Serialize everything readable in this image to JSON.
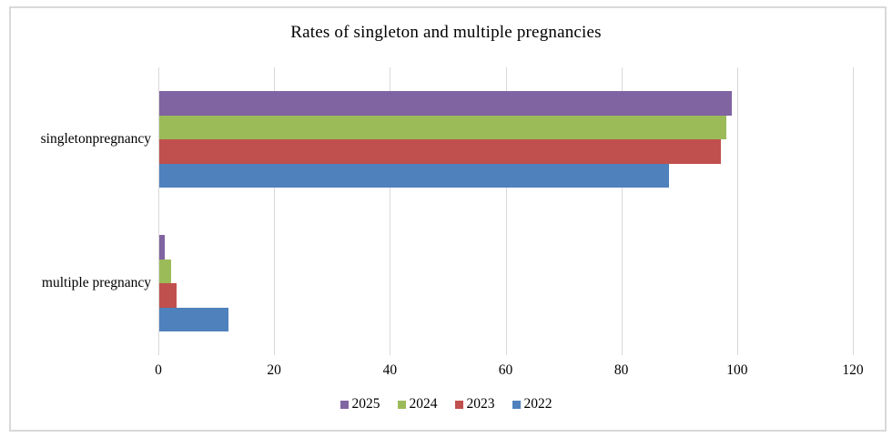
{
  "chart_data": {
    "type": "bar",
    "orientation": "horizontal",
    "title": "Rates of singleton and multiple pregnancies",
    "categories": [
      "singletonpregnancy",
      "multiple pregnancy"
    ],
    "series": [
      {
        "name": "2025",
        "color": "#8064A2",
        "values": [
          99,
          1
        ]
      },
      {
        "name": "2024",
        "color": "#9BBB59",
        "values": [
          98,
          2
        ]
      },
      {
        "name": "2023",
        "color": "#C0504D",
        "values": [
          97,
          3
        ]
      },
      {
        "name": "2022",
        "color": "#4F81BD",
        "values": [
          88,
          12
        ]
      }
    ],
    "xlabel": "",
    "ylabel": "",
    "x_axis": {
      "min": 0,
      "max": 120,
      "ticks": [
        0,
        20,
        40,
        60,
        80,
        100,
        120
      ]
    },
    "grid": true,
    "gridline_color": "#d9d9d9",
    "frame_border_color": "#d9d9d9",
    "background_color": "#ffffff",
    "legend": {
      "position": "bottom",
      "entries": [
        "2025",
        "2024",
        "2023",
        "2022"
      ]
    }
  }
}
